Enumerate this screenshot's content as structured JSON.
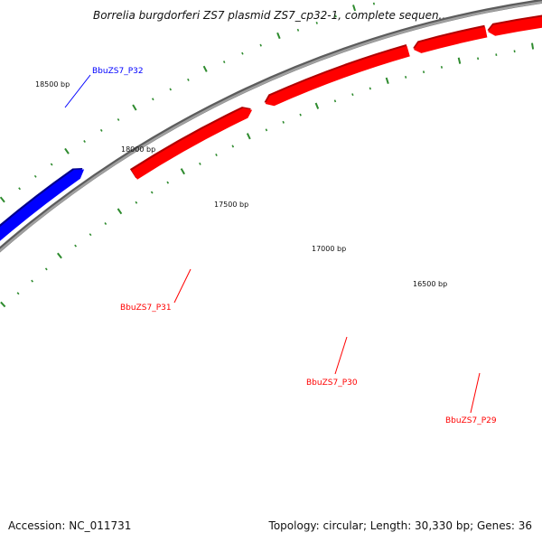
{
  "header": {
    "title": "Borrelia burgdorferi ZS7 plasmid ZS7_cp32-1, complete sequen..."
  },
  "footer": {
    "accession": "Accession: NC_011731",
    "summary": "Topology: circular; Length: 30,330 bp; Genes: 36"
  },
  "map": {
    "position_labels": [
      "18500 bp",
      "18000 bp",
      "17500 bp",
      "17000 bp",
      "16500 bp"
    ],
    "genes": [
      {
        "name": "BbuZS7_P32",
        "strand": "forward",
        "color": "#0000ff"
      },
      {
        "name": "BbuZS7_P31",
        "strand": "reverse",
        "color": "#ff0000"
      },
      {
        "name": "BbuZS7_P30",
        "strand": "reverse",
        "color": "#ff0000"
      },
      {
        "name": "BbuZS7_P29",
        "strand": "reverse",
        "color": "#ff0000"
      }
    ],
    "colors": {
      "backbone": "#8a8a8a",
      "ticks": "#2e8b2e",
      "forward_gene": "#0000ff",
      "reverse_gene": "#ff0000"
    }
  }
}
